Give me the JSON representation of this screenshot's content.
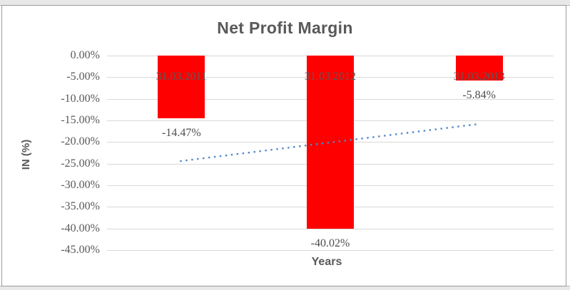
{
  "chart_data": {
    "type": "bar",
    "title": "Net Profit Margin",
    "xlabel": "Years",
    "ylabel": "IN (%)",
    "categories": [
      "31.03.2011",
      "31.03.2012",
      "31.03.2013"
    ],
    "values": [
      -14.47,
      -40.02,
      -5.84
    ],
    "data_labels": [
      "-14.47%",
      "-40.02%",
      "-5.84%"
    ],
    "y_ticks": [
      "0.00%",
      "-5.00%",
      "-10.00%",
      "-15.00%",
      "-20.00%",
      "-25.00%",
      "-30.00%",
      "-35.00%",
      "-40.00%",
      "-45.00%"
    ],
    "y_tick_values": [
      0,
      -5,
      -10,
      -15,
      -20,
      -25,
      -30,
      -35,
      -40,
      -45
    ],
    "ylim": [
      -45,
      0
    ],
    "grid": true,
    "legend_position": "none",
    "trendline": {
      "type": "linear",
      "style": "dotted",
      "color": "#4f87c7"
    },
    "colors": {
      "bar": "#ff0000",
      "gridline": "#d9d9d9",
      "text": "#595959",
      "data_label_text": "#4d4d4d",
      "frame_border": "#9a9a9a",
      "outer_background": "#e8e8e8"
    }
  }
}
